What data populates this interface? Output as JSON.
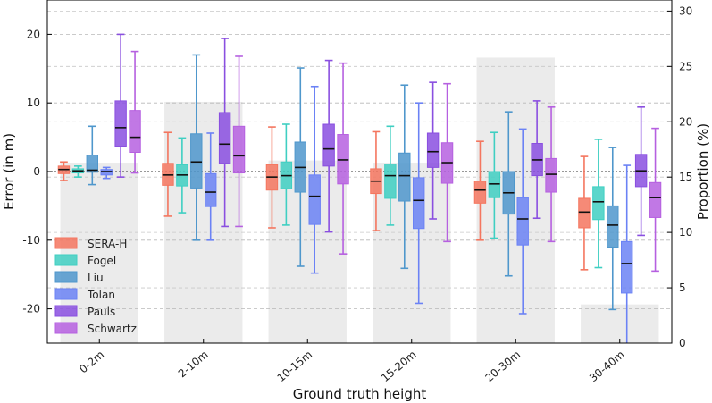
{
  "chart_data": {
    "type": "box",
    "xlabel": "Ground truth height",
    "ylabel_left": "Error (in m)",
    "ylabel_right": "Proportion (%)",
    "ylim_left": [
      -25,
      25
    ],
    "ylim_right": [
      0,
      31
    ],
    "yticks_left": [
      20,
      10,
      0,
      -10,
      -20
    ],
    "yticks_right": [
      30,
      25,
      20,
      15,
      10,
      5,
      0
    ],
    "grid": "horizontal dashed",
    "legend_position": "lower-left",
    "categories": [
      "0-2m",
      "2-10m",
      "10-15m",
      "15-20m",
      "20-30m",
      "30-40m"
    ],
    "proportion": [
      16.3,
      21.8,
      16.5,
      16.3,
      25.8,
      3.5
    ],
    "series": [
      {
        "name": "SERA-H",
        "color": "#f4765f",
        "boxes": [
          {
            "whislo": -1.3,
            "q1": -0.3,
            "med": 0.3,
            "q3": 0.8,
            "whishi": 1.4
          },
          {
            "whislo": -6.5,
            "q1": -2.0,
            "med": -0.5,
            "q3": 1.2,
            "whishi": 5.7
          },
          {
            "whislo": -8.2,
            "q1": -2.7,
            "med": -0.8,
            "q3": 1.0,
            "whishi": 6.5
          },
          {
            "whislo": -8.6,
            "q1": -3.2,
            "med": -1.4,
            "q3": 0.4,
            "whishi": 5.8
          },
          {
            "whislo": -10.0,
            "q1": -4.6,
            "med": -2.7,
            "q3": -1.4,
            "whishi": 4.4
          },
          {
            "whislo": -14.3,
            "q1": -8.2,
            "med": -5.9,
            "q3": -3.9,
            "whishi": 2.2
          }
        ]
      },
      {
        "name": "Fogel",
        "color": "#3fcfc2",
        "boxes": [
          {
            "whislo": -0.8,
            "q1": -0.2,
            "med": 0.1,
            "q3": 0.4,
            "whishi": 0.8
          },
          {
            "whislo": -6.0,
            "q1": -2.1,
            "med": -0.5,
            "q3": 1.0,
            "whishi": 4.9
          },
          {
            "whislo": -7.8,
            "q1": -2.5,
            "med": -0.6,
            "q3": 1.4,
            "whishi": 6.9
          },
          {
            "whislo": -7.8,
            "q1": -3.9,
            "med": -0.6,
            "q3": 1.1,
            "whishi": 6.6
          },
          {
            "whislo": -9.7,
            "q1": -3.8,
            "med": -1.8,
            "q3": 0.0,
            "whishi": 5.7
          },
          {
            "whislo": -14.0,
            "q1": -7.0,
            "med": -4.4,
            "q3": -2.2,
            "whishi": 4.7
          }
        ]
      },
      {
        "name": "Liu",
        "color": "#4f97cc",
        "boxes": [
          {
            "whislo": -1.9,
            "q1": -0.1,
            "med": 0.2,
            "q3": 2.4,
            "whishi": 6.6
          },
          {
            "whislo": -10.0,
            "q1": -2.4,
            "med": 1.4,
            "q3": 5.5,
            "whishi": 17.0
          },
          {
            "whislo": -13.8,
            "q1": -3.0,
            "med": 0.6,
            "q3": 4.3,
            "whishi": 15.1
          },
          {
            "whislo": -14.1,
            "q1": -4.3,
            "med": -0.6,
            "q3": 2.7,
            "whishi": 12.6
          },
          {
            "whislo": -15.2,
            "q1": -6.2,
            "med": -3.1,
            "q3": 0.0,
            "whishi": 8.7
          },
          {
            "whislo": -20.1,
            "q1": -11.0,
            "med": -7.8,
            "q3": -5.0,
            "whishi": 3.5
          }
        ]
      },
      {
        "name": "Tolan",
        "color": "#6b82f5",
        "boxes": [
          {
            "whislo": -1.0,
            "q1": -0.5,
            "med": 0.0,
            "q3": 0.3,
            "whishi": 0.6
          },
          {
            "whislo": -10.0,
            "q1": -5.1,
            "med": -3.0,
            "q3": -0.3,
            "whishi": 5.6
          },
          {
            "whislo": -14.8,
            "q1": -7.7,
            "med": -3.6,
            "q3": -0.5,
            "whishi": 12.4
          },
          {
            "whislo": -19.2,
            "q1": -8.3,
            "med": -4.2,
            "q3": -0.9,
            "whishi": 10.0
          },
          {
            "whislo": -20.7,
            "q1": -10.7,
            "med": -6.9,
            "q3": -3.8,
            "whishi": 6.2
          },
          {
            "whislo": -25.0,
            "q1": -17.7,
            "med": -13.4,
            "q3": -10.2,
            "whishi": 0.9
          }
        ]
      },
      {
        "name": "Pauls",
        "color": "#8a4fe0",
        "boxes": [
          {
            "whislo": -0.8,
            "q1": 3.7,
            "med": 6.4,
            "q3": 10.3,
            "whishi": 20.0
          },
          {
            "whislo": -8.0,
            "q1": 1.2,
            "med": 4.0,
            "q3": 8.6,
            "whishi": 19.4
          },
          {
            "whislo": -8.8,
            "q1": 0.8,
            "med": 3.3,
            "q3": 6.9,
            "whishi": 16.2
          },
          {
            "whislo": -6.9,
            "q1": 0.6,
            "med": 2.9,
            "q3": 5.6,
            "whishi": 13.0
          },
          {
            "whislo": -6.8,
            "q1": -0.6,
            "med": 1.7,
            "q3": 4.1,
            "whishi": 10.3
          },
          {
            "whislo": -9.3,
            "q1": -2.2,
            "med": 0.1,
            "q3": 2.5,
            "whishi": 9.4
          }
        ]
      },
      {
        "name": "Schwartz",
        "color": "#b660e0",
        "boxes": [
          {
            "whislo": -0.2,
            "q1": 2.8,
            "med": 5.0,
            "q3": 8.9,
            "whishi": 17.5
          },
          {
            "whislo": -8.0,
            "q1": -0.2,
            "med": 2.3,
            "q3": 6.6,
            "whishi": 16.8
          },
          {
            "whislo": -12.0,
            "q1": -1.8,
            "med": 1.7,
            "q3": 5.4,
            "whishi": 15.8
          },
          {
            "whislo": -10.2,
            "q1": -1.7,
            "med": 1.3,
            "q3": 4.2,
            "whishi": 12.8
          },
          {
            "whislo": -10.2,
            "q1": -3.0,
            "med": -0.4,
            "q3": 1.9,
            "whishi": 9.4
          },
          {
            "whislo": -14.5,
            "q1": -6.7,
            "med": -3.8,
            "q3": -1.6,
            "whishi": 6.3
          }
        ]
      }
    ]
  }
}
